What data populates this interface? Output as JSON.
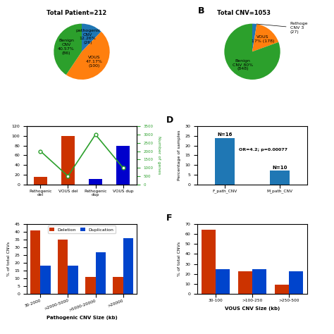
{
  "chart_data": [
    {
      "type": "pie",
      "title": "Total Patient=212",
      "categories": [
        "pathogenic\nCNV\n12.26%\n(26)",
        "VOUS\n47.17%\n(100)",
        "Benign\nCNV\n40.57%\n(86)"
      ],
      "values": [
        12.26,
        47.17,
        40.57
      ]
    },
    {
      "type": "pie",
      "title": "Total CNV=1053",
      "categories": [
        "Pathoge\nCNV 3\n(27)",
        "VOUS\n17% (178)",
        "Benign\nCNV 80%\n(848)"
      ],
      "values": [
        2.56,
        16.9,
        80.54
      ],
      "annotations": [
        "B"
      ]
    },
    {
      "type": "bar",
      "categories": [
        "Pathogenic\ndel",
        "VOUS del",
        "Pathogenic\ndup",
        "VOUS dup"
      ],
      "series": [
        {
          "type": "bar",
          "colors": [
            "#CC3300",
            "#CC3300",
            "#0000CC",
            "#0000CC"
          ],
          "values": [
            16,
            100,
            11,
            80
          ]
        },
        {
          "type": "line",
          "axis": "y2",
          "marker": "circle",
          "line_style": "solid",
          "values": [
            2000,
            500,
            3000,
            1000
          ]
        }
      ],
      "ylim": [
        0,
        120
      ],
      "yticks": [
        0,
        20,
        40,
        60,
        80,
        100,
        120
      ],
      "y2lim": [
        0,
        3500
      ],
      "y2ticks": [
        0,
        500,
        1000,
        1500,
        2000,
        2500,
        3000,
        3500
      ],
      "y2label": "Number of genes"
    },
    {
      "type": "bar",
      "categories": [
        "F_path_CNV",
        "M_path_CNV"
      ],
      "values": [
        24,
        7
      ],
      "value_labels": [
        "N=16",
        "N=10"
      ],
      "data_labels": true,
      "ylabel": "Percentage of samples",
      "ylim": [
        0,
        30
      ],
      "yticks": [
        0,
        5,
        10,
        15,
        20,
        25,
        30
      ],
      "annotations": [
        "D",
        "OR=4.2; p=0.00077"
      ]
    },
    {
      "type": "bar",
      "categories": [
        "30-2000",
        ">2000-5000",
        ">5000-20000",
        ">20000"
      ],
      "series": [
        {
          "name": "Deletion",
          "color": "#CC3300",
          "values": [
            41,
            35,
            11,
            11
          ]
        },
        {
          "name": "Duplication",
          "color": "#0044CC",
          "values": [
            18,
            18,
            27,
            36
          ]
        }
      ],
      "ylabel": "% of total CNVs",
      "xlabel": "Pathogenic CNV Size (kb)",
      "ylim": [
        0,
        45
      ],
      "yticks": [
        0,
        5,
        10,
        15,
        20,
        25,
        30,
        35,
        40,
        45
      ],
      "legend": "upper center"
    },
    {
      "type": "bar",
      "categories": [
        "30-100",
        ">100-250",
        ">250-500"
      ],
      "series": [
        {
          "color": "#CC3300",
          "values": [
            64,
            23,
            9
          ]
        },
        {
          "color": "#0044CC",
          "values": [
            25,
            25,
            23
          ]
        }
      ],
      "ylabel": "% of total CNVs",
      "xlabel": "VOUS CNV Size (kb)",
      "ylim": [
        0,
        70
      ],
      "yticks": [
        0,
        10,
        20,
        30,
        40,
        50,
        60,
        70
      ],
      "annotations": [
        "F"
      ]
    }
  ]
}
